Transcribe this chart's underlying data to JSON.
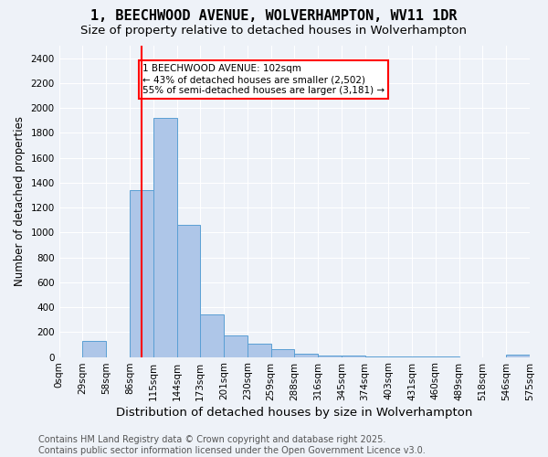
{
  "title": "1, BEECHWOOD AVENUE, WOLVERHAMPTON, WV11 1DR",
  "subtitle": "Size of property relative to detached houses in Wolverhampton",
  "xlabel": "Distribution of detached houses by size in Wolverhampton",
  "ylabel": "Number of detached properties",
  "bar_values": [
    0,
    130,
    0,
    1340,
    1920,
    1060,
    340,
    170,
    110,
    65,
    25,
    15,
    10,
    5,
    5,
    2,
    2,
    0,
    0,
    20
  ],
  "categories": [
    "0sqm",
    "29sqm",
    "58sqm",
    "86sqm",
    "115sqm",
    "144sqm",
    "173sqm",
    "201sqm",
    "230sqm",
    "259sqm",
    "288sqm",
    "316sqm",
    "345sqm",
    "374sqm",
    "403sqm",
    "431sqm",
    "460sqm",
    "489sqm",
    "518sqm",
    "546sqm",
    "575sqm"
  ],
  "bar_color": "#aec6e8",
  "bar_edge_color": "#5a9fd4",
  "red_line_x": 3.5,
  "annotation_text": "1 BEECHWOOD AVENUE: 102sqm\n← 43% of detached houses are smaller (2,502)\n55% of semi-detached houses are larger (3,181) →",
  "annotation_box_color": "white",
  "annotation_box_edge": "red",
  "ylim": [
    0,
    2500
  ],
  "yticks": [
    0,
    200,
    400,
    600,
    800,
    1000,
    1200,
    1400,
    1600,
    1800,
    2000,
    2200,
    2400
  ],
  "footer_line1": "Contains HM Land Registry data © Crown copyright and database right 2025.",
  "footer_line2": "Contains public sector information licensed under the Open Government Licence v3.0.",
  "bg_color": "#eef2f8",
  "grid_color": "white",
  "title_fontsize": 11,
  "subtitle_fontsize": 9.5,
  "xlabel_fontsize": 9.5,
  "ylabel_fontsize": 8.5,
  "tick_fontsize": 7.5,
  "footer_fontsize": 7
}
